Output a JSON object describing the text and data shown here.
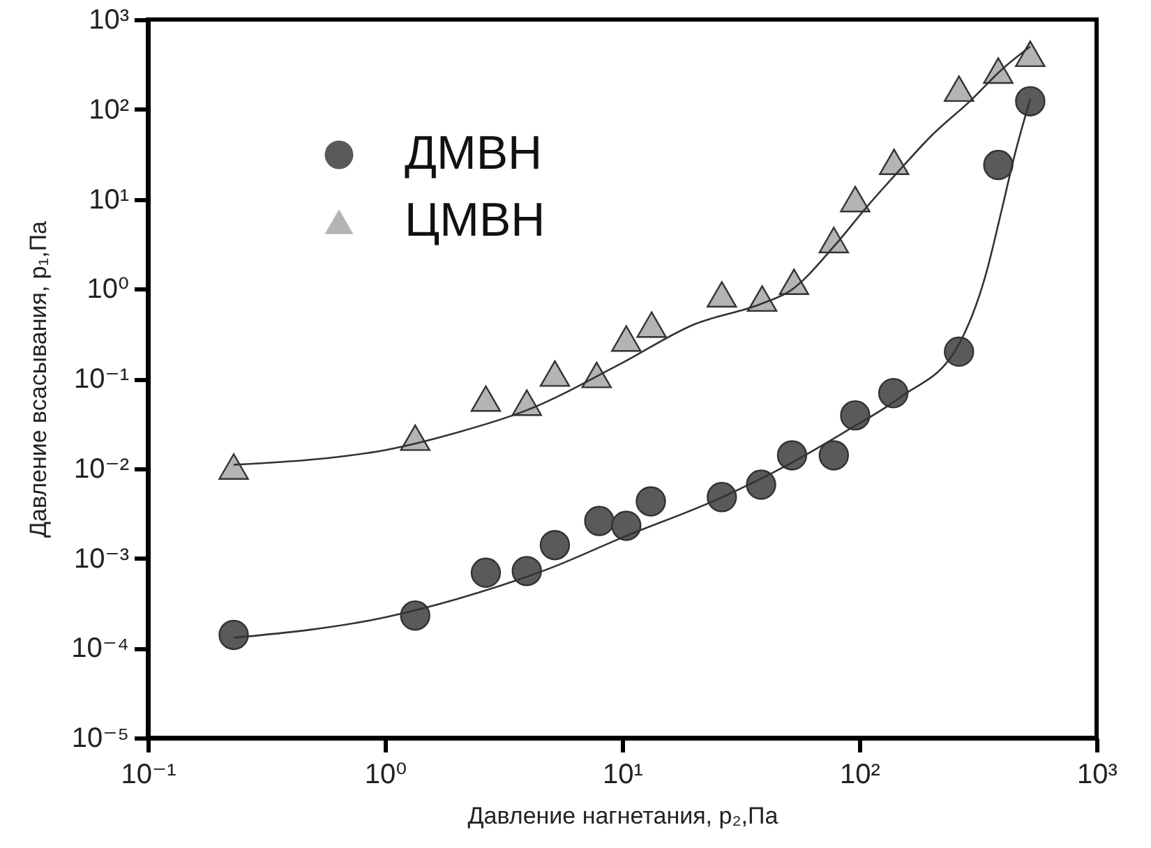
{
  "chart_data": {
    "type": "scatter",
    "xlabel": "Давление нагнетания, p₂,Па",
    "ylabel": "Давление всасывания, p₁,Па",
    "log": "xy",
    "xlim": [
      0.1,
      1000
    ],
    "ylim": [
      1e-05,
      1000
    ],
    "xticks": [
      {
        "value": 0.1,
        "label": "10⁻¹"
      },
      {
        "value": 1,
        "label": "10⁰"
      },
      {
        "value": 10,
        "label": "10¹"
      },
      {
        "value": 100,
        "label": "10²"
      },
      {
        "value": 1000,
        "label": "10³"
      }
    ],
    "yticks": [
      {
        "value": 1e-05,
        "label": "10⁻⁵"
      },
      {
        "value": 0.0001,
        "label": "10⁻⁴"
      },
      {
        "value": 0.001,
        "label": "10⁻³"
      },
      {
        "value": 0.01,
        "label": "10⁻²"
      },
      {
        "value": 0.1,
        "label": "10⁻¹"
      },
      {
        "value": 1,
        "label": "10⁰"
      },
      {
        "value": 10,
        "label": "10¹"
      },
      {
        "value": 100,
        "label": "10²"
      },
      {
        "value": 1000,
        "label": "10³"
      }
    ],
    "grid": false,
    "legend": "top left",
    "series": [
      {
        "name": "ДМВН",
        "marker": "circle",
        "color": "#5a5a5a",
        "x": [
          0.23,
          1.34,
          2.66,
          3.96,
          5.2,
          8.0,
          10.4,
          13.2,
          26.3,
          38.5,
          52,
          78,
          96,
          139,
          263,
          385,
          525
        ],
        "values": [
          0.00014,
          0.00023,
          0.00069,
          0.00072,
          0.0014,
          0.0026,
          0.0023,
          0.0043,
          0.0048,
          0.0066,
          0.014,
          0.014,
          0.039,
          0.069,
          0.2,
          24,
          123
        ]
      },
      {
        "name": "ЦМВН",
        "marker": "triangle",
        "color": "#b4b4b4",
        "x": [
          0.23,
          1.34,
          2.66,
          3.96,
          5.2,
          7.8,
          10.4,
          13.3,
          26.3,
          38.9,
          53,
          78,
          96,
          140,
          263,
          385,
          525
        ],
        "values": [
          0.0105,
          0.022,
          0.06,
          0.054,
          0.114,
          0.11,
          0.28,
          0.4,
          0.87,
          0.78,
          1.2,
          3.5,
          10,
          26,
          170,
          270,
          415
        ]
      },
      {
        "type": "line",
        "color": "#333333",
        "x": [
          0.23,
          1,
          2,
          5,
          10,
          26,
          50,
          90,
          150,
          260,
          340,
          400,
          450,
          525
        ],
        "values": [
          0.00013,
          0.00022,
          0.00035,
          0.00078,
          0.0017,
          0.0047,
          0.011,
          0.027,
          0.063,
          0.23,
          1.4,
          8,
          30,
          130
        ]
      },
      {
        "type": "line",
        "color": "#333333",
        "x": [
          0.23,
          0.5,
          1,
          2,
          4,
          10,
          20,
          38.5,
          51,
          80,
          107,
          150,
          200,
          295,
          400,
          525
        ],
        "values": [
          0.011,
          0.0126,
          0.016,
          0.025,
          0.045,
          0.15,
          0.4,
          0.68,
          0.95,
          3.2,
          8.1,
          22,
          50,
          126,
          280,
          500
        ]
      }
    ]
  }
}
